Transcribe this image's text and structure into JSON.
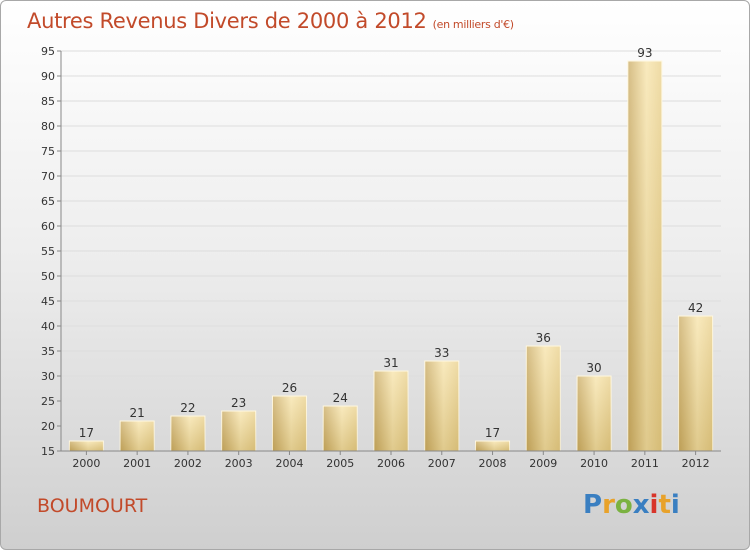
{
  "header": {
    "title": "Autres Revenus Divers de 2000 à 2012",
    "subtitle": "(en milliers d'€)"
  },
  "footer": {
    "place": "BOUMOURT",
    "logo_text": "Proxiti",
    "logo_colors": [
      "#3a7fc1",
      "#e8a22a",
      "#7bb241",
      "#3a7fc1",
      "#d8352a",
      "#e8a22a",
      "#3a7fc1"
    ]
  },
  "colors": {
    "title": "#c24a2a",
    "bar_light": "#f7e3a8",
    "bar_dark": "#c8a85e",
    "grid": "#dddddd",
    "axis": "#888888"
  },
  "chart_data": {
    "type": "bar",
    "title": "Autres Revenus Divers de 2000 à 2012",
    "subtitle": "(en milliers d'€)",
    "xlabel": "",
    "ylabel": "",
    "categories": [
      "2000",
      "2001",
      "2002",
      "2003",
      "2004",
      "2005",
      "2006",
      "2007",
      "2008",
      "2009",
      "2010",
      "2011",
      "2012"
    ],
    "values": [
      17,
      21,
      22,
      23,
      26,
      24,
      31,
      33,
      17,
      36,
      30,
      93,
      42
    ],
    "ylim": [
      15,
      95
    ],
    "yticks": [
      15,
      20,
      25,
      30,
      35,
      40,
      45,
      50,
      55,
      60,
      65,
      70,
      75,
      80,
      85,
      90,
      95
    ],
    "grid": true,
    "legend": "none"
  }
}
